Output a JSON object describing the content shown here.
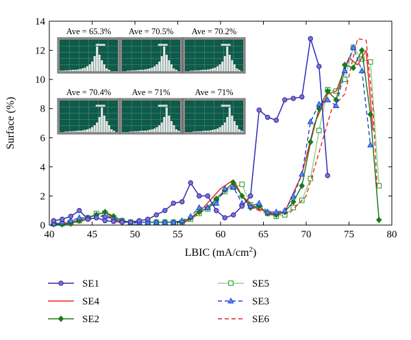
{
  "chart_data": {
    "type": "line",
    "xlabel": "LBIC (mA/cm",
    "xlabel_sup": "2",
    "xlabel_close": ")",
    "ylabel": "Surface (%)",
    "xlim": [
      40,
      80
    ],
    "ylim": [
      0,
      14
    ],
    "xticks": [
      "40",
      "45",
      "50",
      "55",
      "60",
      "65",
      "70",
      "75",
      "80"
    ],
    "yticks": [
      "0",
      "2",
      "4",
      "6",
      "8",
      "10",
      "12",
      "14"
    ],
    "grid": false,
    "legend_position": "bottom",
    "series": [
      {
        "name": "SE1",
        "color": "#2a2ab8",
        "dash": "solid",
        "marker": "circle",
        "marker_fill": "#8a6fc0",
        "x": [
          40.5,
          41.5,
          42.5,
          43.5,
          44.5,
          45.5,
          46.5,
          47.5,
          48.5,
          49.5,
          50.5,
          51.5,
          52.5,
          53.5,
          54.5,
          55.5,
          56.5,
          57.5,
          58.5,
          59.5,
          60.5,
          61.5,
          62.5,
          63.5,
          64.5,
          65.5,
          66.5,
          67.5,
          68.5,
          69.5,
          70.5,
          71.5,
          72.5
        ],
        "y": [
          0.3,
          0.4,
          0.6,
          1.0,
          0.4,
          0.5,
          0.3,
          0.25,
          0.2,
          0.2,
          0.3,
          0.4,
          0.7,
          1.0,
          1.5,
          1.6,
          2.9,
          2.0,
          2.0,
          1.0,
          0.5,
          0.7,
          1.3,
          2.0,
          7.9,
          7.4,
          7.2,
          8.6,
          8.7,
          8.8,
          12.8,
          10.9,
          3.4
        ]
      },
      {
        "name": "SE4",
        "color": "#e8231e",
        "dash": "solid",
        "marker": "none",
        "x": [
          40.5,
          42,
          44,
          46.5,
          48,
          50,
          52,
          54,
          56,
          58,
          60,
          61.5,
          62.5,
          64,
          66,
          67.5,
          69.5,
          71,
          72.5,
          73.5,
          75,
          76,
          77,
          77.8
        ],
        "y": [
          0.1,
          0.15,
          0.4,
          0.9,
          0.3,
          0.2,
          0.2,
          0.2,
          0.25,
          1.2,
          2.5,
          3.1,
          2.0,
          1.2,
          0.8,
          0.9,
          3.5,
          7.0,
          9.0,
          9.2,
          11.5,
          11.0,
          12.0,
          6.5
        ]
      },
      {
        "name": "SE2",
        "color": "#1a7a1a",
        "dash": "solid",
        "marker": "diamond",
        "marker_fill": "#1a7a1a",
        "x": [
          40.5,
          41.5,
          42.5,
          43.5,
          44.5,
          45.5,
          46.5,
          47.5,
          48.5,
          49.5,
          50.5,
          51.5,
          52.5,
          53.5,
          54.5,
          55.5,
          56.5,
          57.5,
          58.5,
          59.5,
          60.5,
          61.5,
          62.5,
          63.5,
          64.5,
          65.5,
          66.5,
          67.5,
          68.5,
          69.5,
          70.5,
          71.5,
          72.5,
          73.5,
          74.5,
          75.5,
          76.5,
          77.5,
          78.5
        ],
        "y": [
          0.05,
          0.05,
          0.1,
          0.3,
          0.5,
          0.7,
          0.9,
          0.6,
          0.3,
          0.2,
          0.2,
          0.2,
          0.2,
          0.2,
          0.2,
          0.2,
          0.5,
          0.9,
          1.2,
          1.8,
          2.4,
          2.9,
          2.0,
          1.2,
          1.3,
          0.8,
          0.7,
          0.9,
          1.6,
          2.7,
          5.7,
          8.0,
          9.2,
          8.6,
          11.0,
          10.8,
          12.0,
          7.6,
          0.35
        ]
      },
      {
        "name": "SE5",
        "color": "#8fd68f",
        "dash": "solid",
        "marker": "square",
        "marker_fill": "#ffffff",
        "marker_stroke": "#2e9a2e",
        "x": [
          40.5,
          41.5,
          42.5,
          43.5,
          44.5,
          45.5,
          46.5,
          47.5,
          48.5,
          49.5,
          50.5,
          51.5,
          52.5,
          53.5,
          54.5,
          55.5,
          56.5,
          57.5,
          58.5,
          59.5,
          60.5,
          61.5,
          62.5,
          63.5,
          64.5,
          65.5,
          66.5,
          67.5,
          68.5,
          69.5,
          70.5,
          71.5,
          72.5,
          73.5,
          74.5,
          75.5,
          76.5,
          77.5,
          78.5
        ],
        "y": [
          0.1,
          0.1,
          0.2,
          0.3,
          0.5,
          0.8,
          0.8,
          0.5,
          0.3,
          0.2,
          0.2,
          0.2,
          0.2,
          0.2,
          0.2,
          0.2,
          0.4,
          0.8,
          1.1,
          1.7,
          2.3,
          2.6,
          2.8,
          1.4,
          1.2,
          0.8,
          0.6,
          0.7,
          1.2,
          1.7,
          3.2,
          6.5,
          9.3,
          9.2,
          10.0,
          12.2,
          11.4,
          11.2,
          2.7
        ]
      },
      {
        "name": "SE3",
        "color": "#1f3fd6",
        "dash": "dash",
        "marker": "triangle",
        "marker_fill": "#4f8fe6",
        "x": [
          40.5,
          41.5,
          42.5,
          43.5,
          44.5,
          45.5,
          46.5,
          47.5,
          48.5,
          49.5,
          50.5,
          51.5,
          52.5,
          53.5,
          54.5,
          55.5,
          56.5,
          57.5,
          58.5,
          59.5,
          60.5,
          61.5,
          62.5,
          63.5,
          64.5,
          65.5,
          66.5,
          67.5,
          68.5,
          69.5,
          70.5,
          71.5,
          72.5,
          73.5,
          74.5,
          75.5,
          76.5,
          77.5
        ],
        "y": [
          0.1,
          0.2,
          0.3,
          0.5,
          0.5,
          0.6,
          0.6,
          0.4,
          0.3,
          0.2,
          0.2,
          0.2,
          0.2,
          0.2,
          0.2,
          0.3,
          0.6,
          1.2,
          1.2,
          1.5,
          2.5,
          2.6,
          1.5,
          1.3,
          1.5,
          0.9,
          0.9,
          1.0,
          2.0,
          3.5,
          7.1,
          8.3,
          8.6,
          8.2,
          10.6,
          12.2,
          10.6,
          5.5
        ]
      },
      {
        "name": "SE6",
        "color": "#e8231e",
        "dash": "dash",
        "marker": "none",
        "x": [
          40.5,
          42,
          44,
          46.5,
          48,
          50,
          52,
          54,
          56,
          58,
          60,
          61.5,
          62.5,
          64,
          66,
          68,
          70,
          71.5,
          73,
          74.5,
          76,
          77,
          77.8,
          78.3
        ],
        "y": [
          0.1,
          0.1,
          0.3,
          0.7,
          0.3,
          0.2,
          0.2,
          0.2,
          0.2,
          1.0,
          2.0,
          2.9,
          2.0,
          1.1,
          0.7,
          0.8,
          2.0,
          5.0,
          8.0,
          9.0,
          12.8,
          12.7,
          8.0,
          2.5
        ]
      }
    ],
    "insets": [
      {
        "label": "Ave = 65.3%"
      },
      {
        "label": "Ave = 70.5%"
      },
      {
        "label": "Ave = 70.2%"
      },
      {
        "label": "Ave = 70.4%"
      },
      {
        "label": "Ave = 71%"
      },
      {
        "label": "Ave = 71%"
      }
    ]
  }
}
